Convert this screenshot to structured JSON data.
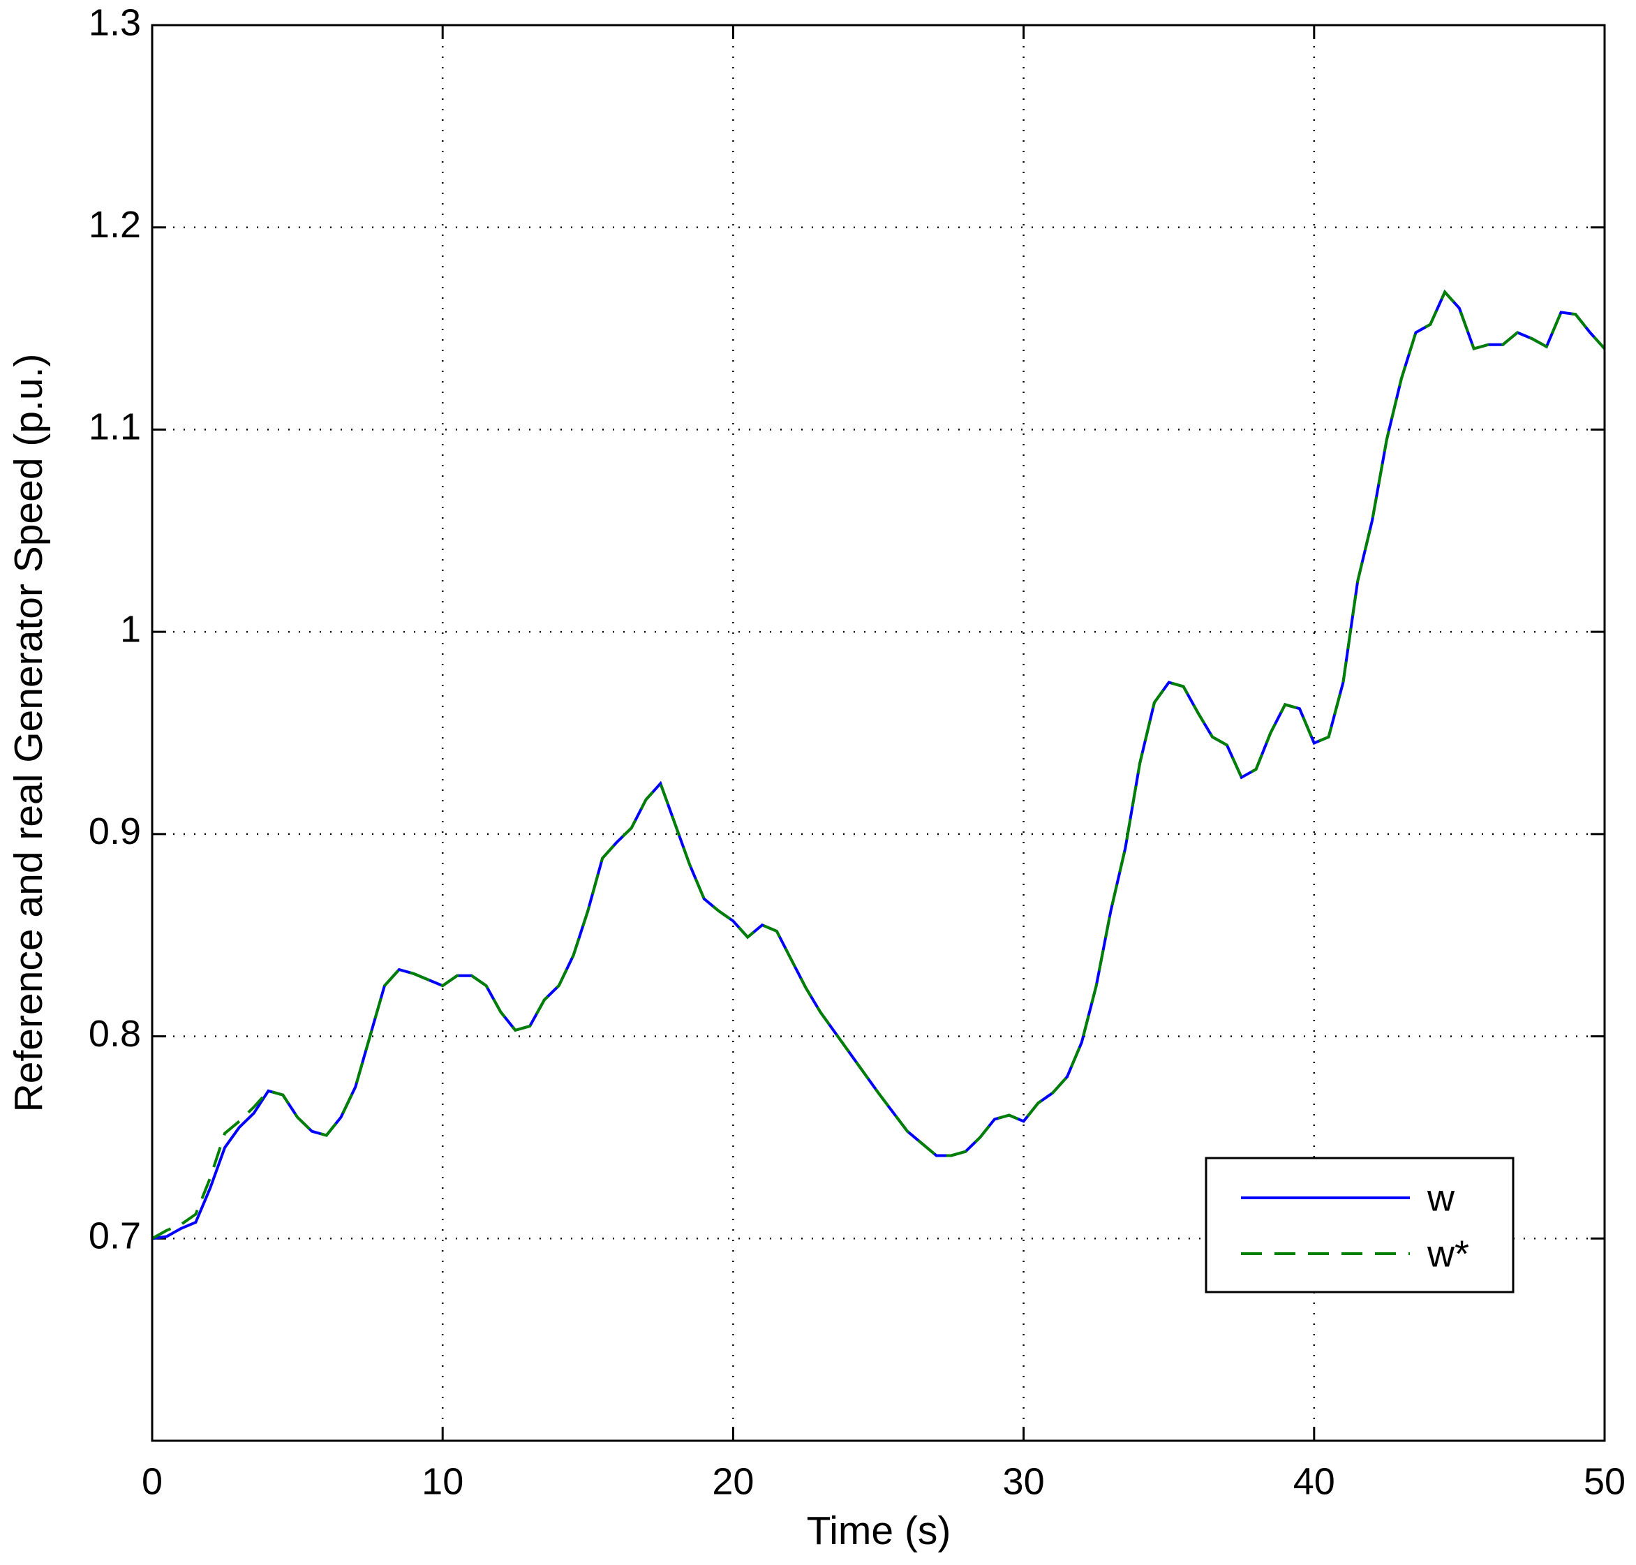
{
  "chart_data": {
    "type": "line",
    "xlabel": "Time (s)",
    "ylabel": "Reference and real Generator Speed (p.u.)",
    "x": [
      0,
      0.5,
      1,
      1.5,
      2,
      2.5,
      3,
      3.5,
      4,
      4.5,
      5,
      5.5,
      6,
      6.5,
      7,
      7.5,
      8,
      8.5,
      9,
      9.5,
      10,
      10.5,
      11,
      11.5,
      12,
      12.5,
      13,
      13.5,
      14,
      14.5,
      15,
      15.5,
      16,
      16.5,
      17,
      17.5,
      18,
      18.5,
      19,
      19.5,
      20,
      20.5,
      21,
      21.5,
      22,
      22.5,
      23,
      24,
      25,
      26,
      27,
      27.5,
      28,
      28.5,
      29,
      29.5,
      30,
      30.5,
      31,
      31.5,
      32,
      32.5,
      33,
      33.5,
      34,
      34.5,
      35,
      35.5,
      36,
      36.5,
      37,
      37.5,
      38,
      38.5,
      39,
      39.5,
      40,
      40.5,
      41,
      41.5,
      42,
      42.5,
      43,
      43.5,
      44,
      44.5,
      45,
      45.5,
      46,
      46.5,
      47,
      47.5,
      48,
      48.5,
      49,
      49.5,
      50
    ],
    "series": [
      {
        "name": "w",
        "color": "#0000ff",
        "dash": false,
        "values": [
          0.7,
          0.701,
          0.705,
          0.708,
          0.725,
          0.745,
          0.755,
          0.762,
          0.773,
          0.771,
          0.76,
          0.753,
          0.751,
          0.76,
          0.775,
          0.8,
          0.825,
          0.833,
          0.831,
          0.828,
          0.825,
          0.83,
          0.83,
          0.825,
          0.812,
          0.803,
          0.805,
          0.818,
          0.825,
          0.84,
          0.862,
          0.888,
          0.896,
          0.903,
          0.917,
          0.925,
          0.905,
          0.885,
          0.868,
          0.862,
          0.857,
          0.849,
          0.855,
          0.852,
          0.838,
          0.824,
          0.812,
          0.792,
          0.772,
          0.753,
          0.741,
          0.741,
          0.743,
          0.75,
          0.759,
          0.761,
          0.758,
          0.767,
          0.772,
          0.78,
          0.797,
          0.825,
          0.862,
          0.893,
          0.935,
          0.965,
          0.975,
          0.973,
          0.96,
          0.948,
          0.944,
          0.928,
          0.932,
          0.95,
          0.964,
          0.962,
          0.945,
          0.948,
          0.975,
          1.025,
          1.055,
          1.095,
          1.125,
          1.148,
          1.152,
          1.168,
          1.16,
          1.14,
          1.142,
          1.142,
          1.148,
          1.145,
          1.141,
          1.158,
          1.157,
          1.148,
          1.14
        ]
      },
      {
        "name": "w*",
        "color": "#008000",
        "dash": true,
        "values": [
          0.7,
          0.704,
          0.707,
          0.712,
          0.73,
          0.752,
          0.758,
          0.765,
          0.773,
          0.771,
          0.76,
          0.753,
          0.751,
          0.76,
          0.775,
          0.8,
          0.825,
          0.833,
          0.831,
          0.828,
          0.825,
          0.83,
          0.83,
          0.825,
          0.812,
          0.803,
          0.805,
          0.818,
          0.825,
          0.84,
          0.862,
          0.888,
          0.896,
          0.903,
          0.917,
          0.925,
          0.905,
          0.885,
          0.868,
          0.862,
          0.857,
          0.849,
          0.855,
          0.852,
          0.838,
          0.824,
          0.812,
          0.792,
          0.772,
          0.753,
          0.741,
          0.741,
          0.743,
          0.75,
          0.759,
          0.761,
          0.758,
          0.767,
          0.772,
          0.78,
          0.797,
          0.825,
          0.862,
          0.893,
          0.935,
          0.965,
          0.975,
          0.973,
          0.96,
          0.948,
          0.944,
          0.928,
          0.932,
          0.95,
          0.964,
          0.962,
          0.945,
          0.948,
          0.975,
          1.025,
          1.055,
          1.095,
          1.125,
          1.148,
          1.152,
          1.168,
          1.16,
          1.14,
          1.142,
          1.142,
          1.148,
          1.145,
          1.141,
          1.158,
          1.157,
          1.148,
          1.14
        ]
      }
    ],
    "xlim": [
      0,
      50
    ],
    "xticks": [
      0,
      10,
      20,
      30,
      40,
      50
    ],
    "ylim": [
      0.6,
      1.3
    ],
    "yticks": [
      0.7,
      0.8,
      0.9,
      1,
      1.1,
      1.2,
      1.3
    ],
    "grid": true,
    "legend": "lower right"
  }
}
